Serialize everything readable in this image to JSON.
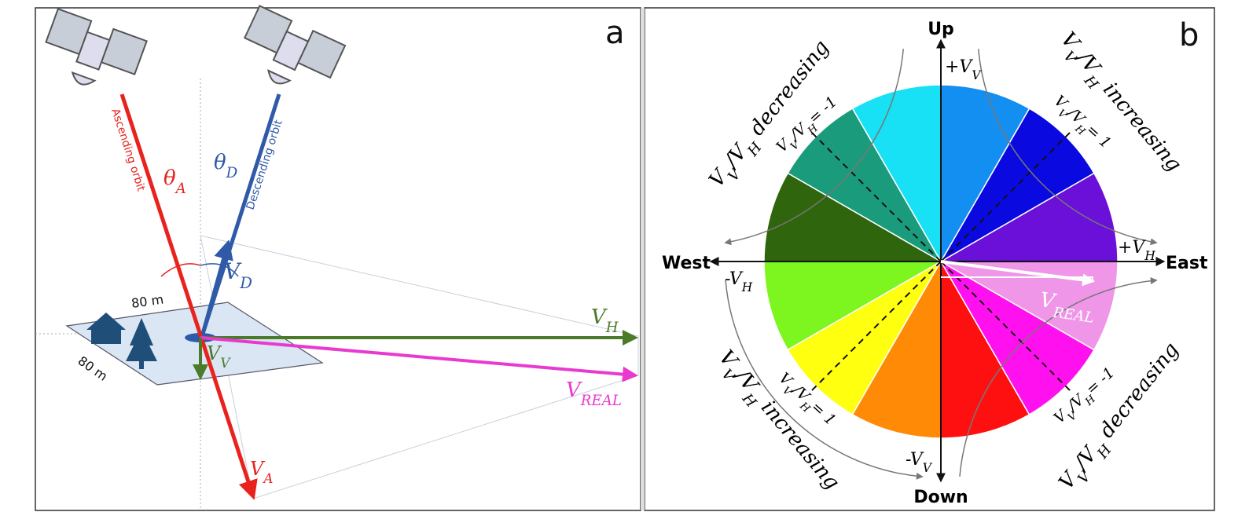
{
  "panel_a": {
    "label": "a",
    "ascending_orbit": "Ascending orbit",
    "descending_orbit": "Descending orbit",
    "theta_a": [
      {
        "text": "θ"
      },
      {
        "text": "A",
        "sub": true
      }
    ],
    "theta_d": [
      {
        "text": "θ"
      },
      {
        "text": "D",
        "sub": true
      }
    ],
    "v_d": [
      {
        "text": "V"
      },
      {
        "text": "D",
        "sub": true
      }
    ],
    "v_h": [
      {
        "text": "V"
      },
      {
        "text": "H",
        "sub": true
      }
    ],
    "v_v": [
      {
        "text": "V"
      },
      {
        "text": "V",
        "sub": true
      }
    ],
    "v_real": [
      {
        "text": "V"
      },
      {
        "text": "REAL",
        "sub": true
      }
    ],
    "v_a": [
      {
        "text": "V"
      },
      {
        "text": "A",
        "sub": true
      }
    ],
    "dimension_top": "80 m",
    "dimension_side": "80 m"
  },
  "panel_b": {
    "label": "b",
    "up": "Up",
    "down": "Down",
    "west": "West",
    "east": "East",
    "plus_vv": [
      {
        "text": "+V"
      },
      {
        "text": "V",
        "sub": true
      }
    ],
    "minus_vv": [
      {
        "text": "-V"
      },
      {
        "text": "V",
        "sub": true
      }
    ],
    "plus_vh": [
      {
        "text": "+V"
      },
      {
        "text": "H",
        "sub": true
      }
    ],
    "minus_vh": [
      {
        "text": "-V"
      },
      {
        "text": "H",
        "sub": true
      }
    ],
    "v_real": [
      {
        "text": "V"
      },
      {
        "text": "REAL",
        "sub": true
      }
    ],
    "ratio_ne": [
      {
        "text": "V"
      },
      {
        "text": "V",
        "sub": true
      },
      {
        "text": "/V"
      },
      {
        "text": "H",
        "sub": true
      },
      {
        "text": "= 1"
      }
    ],
    "ratio_nw": [
      {
        "text": "V"
      },
      {
        "text": "V",
        "sub": true
      },
      {
        "text": "/V"
      },
      {
        "text": "H",
        "sub": true
      },
      {
        "text": "= -1"
      }
    ],
    "ratio_sw": [
      {
        "text": "V"
      },
      {
        "text": "V",
        "sub": true
      },
      {
        "text": "/V"
      },
      {
        "text": "H",
        "sub": true
      },
      {
        "text": "= 1"
      }
    ],
    "ratio_se": [
      {
        "text": "V"
      },
      {
        "text": "V",
        "sub": true
      },
      {
        "text": "/V"
      },
      {
        "text": "H",
        "sub": true
      },
      {
        "text": "= -1"
      }
    ],
    "arc_top_left": [
      {
        "text": "V"
      },
      {
        "text": "V",
        "sub": true
      },
      {
        "text": "/V"
      },
      {
        "text": "H",
        "sub": true
      },
      {
        "text": " decreasing"
      }
    ],
    "arc_top_right": [
      {
        "text": "V"
      },
      {
        "text": "V",
        "sub": true
      },
      {
        "text": "/V"
      },
      {
        "text": "H",
        "sub": true
      },
      {
        "text": " increasing"
      }
    ],
    "arc_bottom_left": [
      {
        "text": "V"
      },
      {
        "text": "V",
        "sub": true
      },
      {
        "text": "/V"
      },
      {
        "text": "H",
        "sub": true
      },
      {
        "text": " increasing"
      }
    ],
    "arc_bottom_right": [
      {
        "text": "V"
      },
      {
        "text": "V",
        "sub": true
      },
      {
        "text": "/V"
      },
      {
        "text": "H",
        "sub": true
      },
      {
        "text": " decreasing"
      }
    ]
  }
}
